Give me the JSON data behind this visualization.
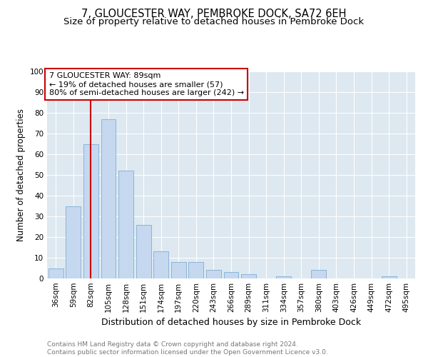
{
  "title": "7, GLOUCESTER WAY, PEMBROKE DOCK, SA72 6EH",
  "subtitle": "Size of property relative to detached houses in Pembroke Dock",
  "xlabel": "Distribution of detached houses by size in Pembroke Dock",
  "ylabel": "Number of detached properties",
  "categories": [
    "36sqm",
    "59sqm",
    "82sqm",
    "105sqm",
    "128sqm",
    "151sqm",
    "174sqm",
    "197sqm",
    "220sqm",
    "243sqm",
    "266sqm",
    "289sqm",
    "311sqm",
    "334sqm",
    "357sqm",
    "380sqm",
    "403sqm",
    "426sqm",
    "449sqm",
    "472sqm",
    "495sqm"
  ],
  "values": [
    5,
    35,
    65,
    77,
    52,
    26,
    13,
    8,
    8,
    4,
    3,
    2,
    0,
    1,
    0,
    4,
    0,
    0,
    0,
    1,
    0
  ],
  "bar_color": "#c5d8ef",
  "bar_edge_color": "#8ab4d8",
  "vline_x": 2,
  "vline_color": "#cc0000",
  "annotation_text": "7 GLOUCESTER WAY: 89sqm\n← 19% of detached houses are smaller (57)\n80% of semi-detached houses are larger (242) →",
  "annotation_box_color": "#ffffff",
  "annotation_box_edge": "#cc0000",
  "ylim": [
    0,
    100
  ],
  "yticks": [
    0,
    10,
    20,
    30,
    40,
    50,
    60,
    70,
    80,
    90,
    100
  ],
  "background_color": "#dde8f0",
  "footer_text": "Contains HM Land Registry data © Crown copyright and database right 2024.\nContains public sector information licensed under the Open Government Licence v3.0.",
  "title_fontsize": 10.5,
  "subtitle_fontsize": 9.5,
  "xlabel_fontsize": 9,
  "ylabel_fontsize": 8.5,
  "annotation_fontsize": 8,
  "tick_fontsize": 7.5,
  "footer_fontsize": 6.5
}
